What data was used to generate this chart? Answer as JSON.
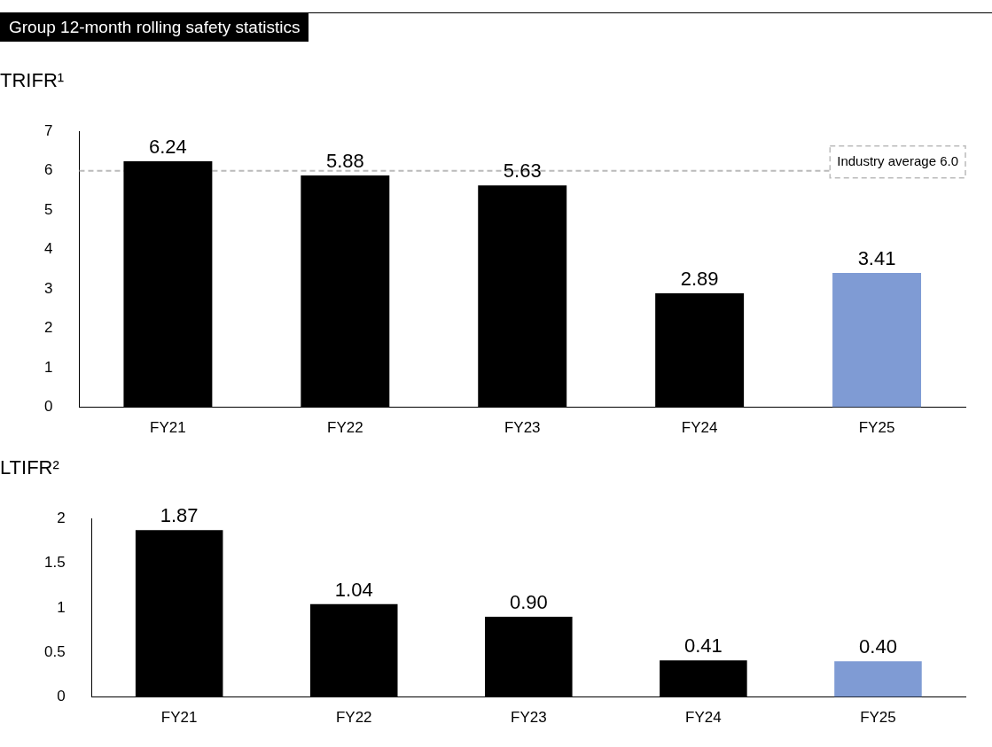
{
  "chart_data": [
    {
      "type": "bar",
      "title": "Group 12-month rolling safety statistics",
      "subtitle": "TRIFR¹",
      "categories": [
        "FY21",
        "FY22",
        "FY23",
        "FY24",
        "FY25"
      ],
      "values": [
        6.24,
        5.88,
        5.63,
        2.89,
        3.41
      ],
      "colors": [
        "#000000",
        "#000000",
        "#000000",
        "#000000",
        "#7f9bd4"
      ],
      "value_labels": [
        "6.24",
        "5.88",
        "5.63",
        "2.89",
        "3.41"
      ],
      "ylim": [
        0,
        7
      ],
      "yticks": [
        0,
        1,
        2,
        3,
        4,
        5,
        6,
        7
      ],
      "grid": false,
      "legend": false,
      "ref_lines": [
        {
          "axis": "y",
          "value": 6.0,
          "label": "Industry average 6.0",
          "color": "#bbbbbb",
          "line_style": "dashed"
        }
      ]
    },
    {
      "type": "bar",
      "title": "LTIFR²",
      "categories": [
        "FY21",
        "FY22",
        "FY23",
        "FY24",
        "FY25"
      ],
      "values": [
        1.87,
        1.04,
        0.9,
        0.41,
        0.4
      ],
      "colors": [
        "#000000",
        "#000000",
        "#000000",
        "#000000",
        "#7f9bd4"
      ],
      "value_labels": [
        "1.87",
        "1.04",
        "0.90",
        "0.41",
        "0.40"
      ],
      "ylim": [
        0,
        2
      ],
      "yticks": [
        0,
        0.5,
        1,
        1.5,
        2
      ],
      "grid": false,
      "legend": false
    }
  ]
}
